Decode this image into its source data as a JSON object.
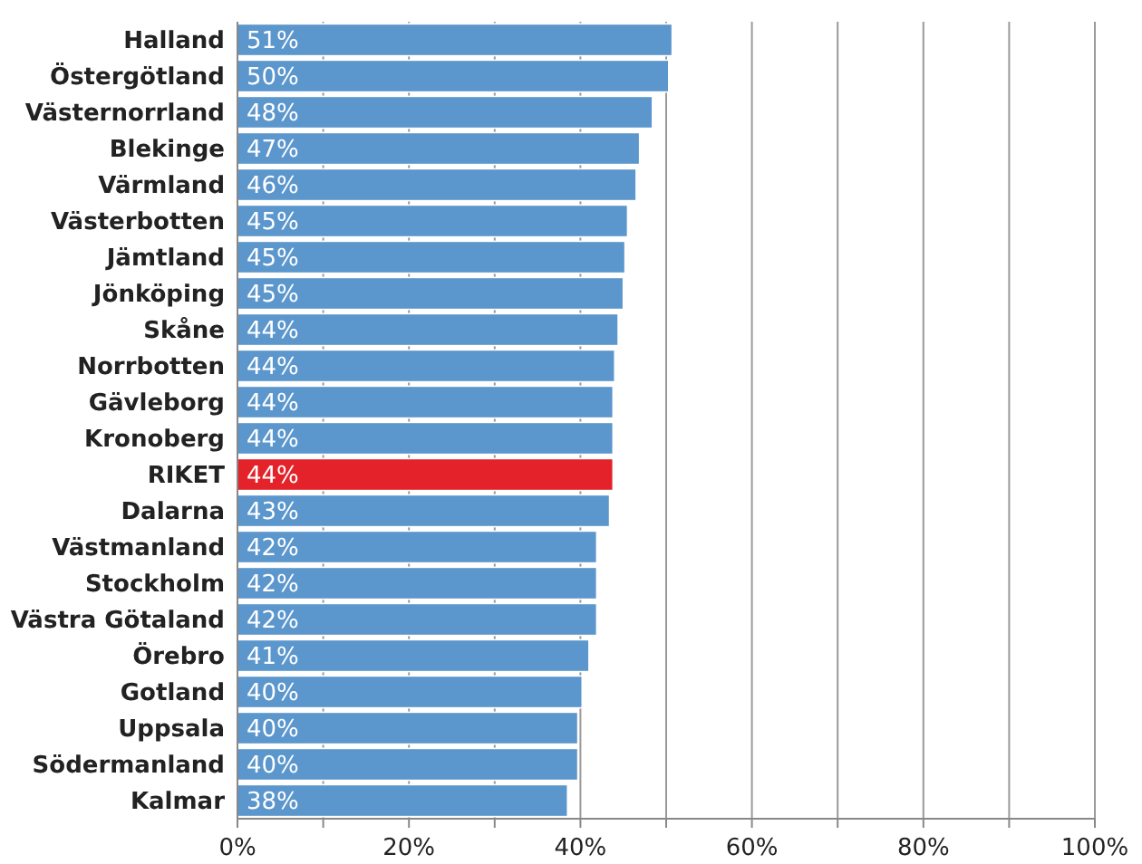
{
  "chart_data": {
    "type": "bar",
    "orientation": "horizontal",
    "categories": [
      "Halland",
      "Östergötland",
      "Västernorrland",
      "Blekinge",
      "Värmland",
      "Västerbotten",
      "Jämtland",
      "Jönköping",
      "Skåne",
      "Norrbotten",
      "Gävleborg",
      "Kronoberg",
      "RIKET",
      "Dalarna",
      "Västmanland",
      "Stockholm",
      "Västra Götaland",
      "Örebro",
      "Gotland",
      "Uppsala",
      "Södermanland",
      "Kalmar"
    ],
    "values": [
      50.7,
      50.3,
      48.4,
      46.9,
      46.5,
      45.5,
      45.2,
      45.0,
      44.4,
      44.0,
      43.8,
      43.8,
      43.8,
      43.4,
      41.9,
      41.9,
      41.9,
      41.0,
      40.2,
      39.7,
      39.7,
      38.5
    ],
    "value_labels": [
      "51%",
      "50%",
      "48%",
      "47%",
      "46%",
      "45%",
      "45%",
      "45%",
      "44%",
      "44%",
      "44%",
      "44%",
      "44%",
      "43%",
      "42%",
      "42%",
      "42%",
      "41%",
      "40%",
      "40%",
      "40%",
      "38%"
    ],
    "colors": [
      "#5b96cc",
      "#5b96cc",
      "#5b96cc",
      "#5b96cc",
      "#5b96cc",
      "#5b96cc",
      "#5b96cc",
      "#5b96cc",
      "#5b96cc",
      "#5b96cc",
      "#5b96cc",
      "#5b96cc",
      "#e3222a",
      "#5b96cc",
      "#5b96cc",
      "#5b96cc",
      "#5b96cc",
      "#5b96cc",
      "#5b96cc",
      "#5b96cc",
      "#5b96cc",
      "#5b96cc"
    ],
    "xlim": [
      0,
      100
    ],
    "xticks": [
      {
        "value": 0,
        "label": "0%"
      },
      {
        "value": 10,
        "label": null
      },
      {
        "value": 20,
        "label": "20%"
      },
      {
        "value": 30,
        "label": null
      },
      {
        "value": 40,
        "label": "40%"
      },
      {
        "value": 50,
        "label": null
      },
      {
        "value": 60,
        "label": "60%"
      },
      {
        "value": 70,
        "label": null
      },
      {
        "value": 80,
        "label": "80%"
      },
      {
        "value": 90,
        "label": null
      },
      {
        "value": 100,
        "label": "100%"
      }
    ],
    "grid": "x"
  }
}
